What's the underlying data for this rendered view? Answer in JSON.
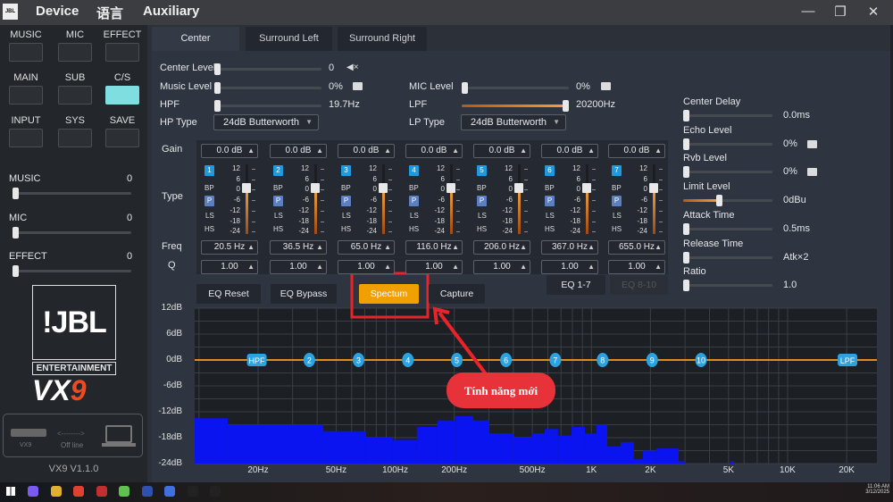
{
  "titlebar": {
    "menus": [
      "Device",
      "语言",
      "Auxiliary"
    ],
    "minimize": "—",
    "restore": "❐",
    "close": "✕"
  },
  "sidebar": {
    "buttons": [
      {
        "label": "MUSIC",
        "active": false
      },
      {
        "label": "MIC",
        "active": false
      },
      {
        "label": "EFFECT",
        "active": false
      },
      {
        "label": "MAIN",
        "active": false
      },
      {
        "label": "SUB",
        "active": false
      },
      {
        "label": "C/S",
        "active": true
      },
      {
        "label": "INPUT",
        "active": false
      },
      {
        "label": "SYS",
        "active": false
      },
      {
        "label": "SAVE",
        "active": false
      }
    ],
    "sliders": [
      {
        "label": "MUSIC",
        "value": "0"
      },
      {
        "label": "MIC",
        "value": "0"
      },
      {
        "label": "EFFECT",
        "value": "0"
      }
    ],
    "logo": {
      "brand": "JBL",
      "sub": "ENTERTAINMENT",
      "model": "VX",
      "model_num": "9"
    },
    "connection": {
      "device": "VX9",
      "status": "Off line"
    },
    "version": "VX9 V1.1.0"
  },
  "tabs": [
    {
      "label": "Center",
      "active": true
    },
    {
      "label": "Surround Left",
      "active": false
    },
    {
      "label": "Surround Right",
      "active": false
    }
  ],
  "controls": {
    "center_level": {
      "label": "Center Level",
      "value": "0",
      "level": 0
    },
    "music_level": {
      "label": "Music Level",
      "value": "0%",
      "level": 0
    },
    "hpf": {
      "label": "HPF",
      "value": "19.7Hz",
      "level": 0
    },
    "hp_type": {
      "label": "HP Type",
      "value": "24dB Butterworth"
    },
    "mic_level": {
      "label": "MIC Level",
      "value": "0%",
      "level": 0
    },
    "lpf": {
      "label": "LPF",
      "value": "20200Hz",
      "level": 100
    },
    "lp_type": {
      "label": "LP Type",
      "value": "24dB Butterworth"
    }
  },
  "right_panel": [
    {
      "label": "Center Delay",
      "value": "0.0ms",
      "level": 0,
      "mute": false
    },
    {
      "label": "Echo Level",
      "value": "0%",
      "level": 0,
      "mute": true
    },
    {
      "label": "Rvb Level",
      "value": "0%",
      "level": 0,
      "mute": true
    },
    {
      "label": "Limit Level",
      "value": "0dBu",
      "level": 40,
      "mute": false
    },
    {
      "label": "Attack Time",
      "value": "0.5ms",
      "level": 0,
      "mute": false
    },
    {
      "label": "Release Time",
      "value": "Atk×2",
      "level": 0,
      "mute": false
    },
    {
      "label": "Ratio",
      "value": "1.0",
      "level": 0,
      "mute": false
    }
  ],
  "eq": {
    "row_labels": {
      "gain": "Gain",
      "type": "Type",
      "freq": "Freq",
      "q": "Q"
    },
    "types": [
      "BP",
      "P",
      "LS",
      "HS"
    ],
    "scale": [
      "12",
      "6",
      "0",
      "-6",
      "-12",
      "-18",
      "-24"
    ],
    "bands": [
      {
        "num": "1",
        "gain": "0.0 dB",
        "freq": "20.5 Hz",
        "q": "1.00",
        "type": "P"
      },
      {
        "num": "2",
        "gain": "0.0 dB",
        "freq": "36.5 Hz",
        "q": "1.00",
        "type": "P"
      },
      {
        "num": "3",
        "gain": "0.0 dB",
        "freq": "65.0 Hz",
        "q": "1.00",
        "type": "P"
      },
      {
        "num": "4",
        "gain": "0.0 dB",
        "freq": "116.0 Hz",
        "q": "1.00",
        "type": "P"
      },
      {
        "num": "5",
        "gain": "0.0 dB",
        "freq": "206.0 Hz",
        "q": "1.00",
        "type": "P"
      },
      {
        "num": "6",
        "gain": "0.0 dB",
        "freq": "367.0 Hz",
        "q": "1.00",
        "type": "P"
      },
      {
        "num": "7",
        "gain": "0.0 dB",
        "freq": "655.0 Hz",
        "q": "1.00",
        "type": "P"
      }
    ],
    "buttons": {
      "reset": "EQ Reset",
      "bypass": "EQ Bypass",
      "spectrum": "Spectum",
      "capture": "Capture"
    },
    "pages": {
      "p1": "EQ 1-7",
      "p2": "EQ 8-10"
    },
    "colors": {
      "accent": "#f0a000",
      "badge": "#1e9be0",
      "node": "#2aa3e0",
      "spectrum": "#0a14f0",
      "curve": "#e08a20"
    }
  },
  "graph": {
    "y_ticks": [
      "12dB",
      "6dB",
      "0dB",
      "-6dB",
      "-12dB",
      "-18dB",
      "-24dB"
    ],
    "y_values": [
      12,
      6,
      0,
      -6,
      -12,
      -18,
      -24
    ],
    "x_ticks": [
      {
        "label": "20Hz",
        "f": 20
      },
      {
        "label": "50Hz",
        "f": 50
      },
      {
        "label": "100Hz",
        "f": 100
      },
      {
        "label": "200Hz",
        "f": 200
      },
      {
        "label": "500Hz",
        "f": 500
      },
      {
        "label": "1K",
        "f": 1000
      },
      {
        "label": "2K",
        "f": 2000
      },
      {
        "label": "5K",
        "f": 5000
      },
      {
        "label": "10K",
        "f": 10000
      },
      {
        "label": "20K",
        "f": 20000
      }
    ],
    "nodes": [
      {
        "label": "HPF",
        "f": 19.7
      },
      {
        "label": "2",
        "f": 36.5
      },
      {
        "label": "3",
        "f": 65
      },
      {
        "label": "4",
        "f": 116
      },
      {
        "label": "5",
        "f": 206
      },
      {
        "label": "6",
        "f": 367
      },
      {
        "label": "7",
        "f": 655
      },
      {
        "label": "8",
        "f": 1140
      },
      {
        "label": "9",
        "f": 2040
      },
      {
        "label": "10",
        "f": 3620
      },
      {
        "label": "LPF",
        "f": 20200
      }
    ],
    "spectrum": [
      {
        "from": 9.5,
        "to": 14,
        "db": -13.5
      },
      {
        "from": 14,
        "to": 43,
        "db": -15
      },
      {
        "from": 43,
        "to": 71,
        "db": -16.5
      },
      {
        "from": 71,
        "to": 97,
        "db": -18
      },
      {
        "from": 97,
        "to": 129,
        "db": -18.5
      },
      {
        "from": 129,
        "to": 164,
        "db": -15.5
      },
      {
        "from": 164,
        "to": 203,
        "db": -14
      },
      {
        "from": 203,
        "to": 250,
        "db": -13
      },
      {
        "from": 250,
        "to": 302,
        "db": -14
      },
      {
        "from": 302,
        "to": 400,
        "db": -17
      },
      {
        "from": 400,
        "to": 494,
        "db": -18
      },
      {
        "from": 494,
        "to": 578,
        "db": -17
      },
      {
        "from": 578,
        "to": 676,
        "db": -16
      },
      {
        "from": 676,
        "to": 792,
        "db": -17.5
      },
      {
        "from": 792,
        "to": 927,
        "db": -15.5
      },
      {
        "from": 927,
        "to": 1062,
        "db": -17
      },
      {
        "from": 1062,
        "to": 1204,
        "db": -15
      },
      {
        "from": 1204,
        "to": 1410,
        "db": -20
      },
      {
        "from": 1410,
        "to": 1648,
        "db": -19
      },
      {
        "from": 1648,
        "to": 1830,
        "db": -23
      },
      {
        "from": 1830,
        "to": 2140,
        "db": -21
      },
      {
        "from": 2140,
        "to": 2786,
        "db": -20.5
      },
      {
        "from": 2786,
        "to": 3027,
        "db": -23.5
      },
      {
        "from": 5120,
        "to": 5340,
        "db": -23.5
      }
    ]
  },
  "annotation": {
    "text": "Tính năng mới",
    "color": "#e8323a"
  },
  "taskbar": {
    "time": "11:06 AM",
    "date": "3/12/2025"
  }
}
